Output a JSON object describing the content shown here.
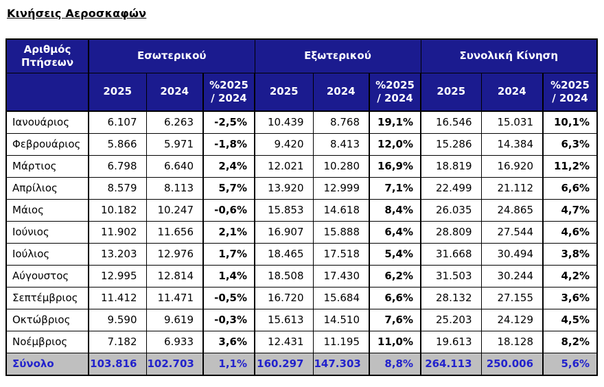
{
  "page": {
    "title": "Κινήσεις Αεροσκαφών"
  },
  "colors": {
    "header_bg": "#1b1b8f",
    "header_text": "#ffffff",
    "total_bg": "#bfbfbf",
    "total_text": "#2222cc",
    "border": "#000000"
  },
  "chart_data": {
    "type": "table",
    "title": "Κινήσεις Αεροσκαφών",
    "corner_header": "Αριθμός\nΠτήσεων",
    "column_groups": [
      "Εσωτερικού",
      "Εξωτερικού",
      "Συνολική Κίνηση"
    ],
    "sub_columns": [
      "2025",
      "2024",
      "%2025\n/ 2024"
    ],
    "rows": [
      {
        "month": "Ιανουάριος",
        "cells": [
          "6.107",
          "6.263",
          "-2,5%",
          "10.439",
          "8.768",
          "19,1%",
          "16.546",
          "15.031",
          "10,1%"
        ]
      },
      {
        "month": "Φεβρουάριος",
        "cells": [
          "5.866",
          "5.971",
          "-1,8%",
          "9.420",
          "8.413",
          "12,0%",
          "15.286",
          "14.384",
          "6,3%"
        ]
      },
      {
        "month": "Μάρτιος",
        "cells": [
          "6.798",
          "6.640",
          "2,4%",
          "12.021",
          "10.280",
          "16,9%",
          "18.819",
          "16.920",
          "11,2%"
        ]
      },
      {
        "month": "Απρίλιος",
        "cells": [
          "8.579",
          "8.113",
          "5,7%",
          "13.920",
          "12.999",
          "7,1%",
          "22.499",
          "21.112",
          "6,6%"
        ]
      },
      {
        "month": "Μάιος",
        "cells": [
          "10.182",
          "10.247",
          "-0,6%",
          "15.853",
          "14.618",
          "8,4%",
          "26.035",
          "24.865",
          "4,7%"
        ]
      },
      {
        "month": "Ιούνιος",
        "cells": [
          "11.902",
          "11.656",
          "2,1%",
          "16.907",
          "15.888",
          "6,4%",
          "28.809",
          "27.544",
          "4,6%"
        ]
      },
      {
        "month": "Ιούλιος",
        "cells": [
          "13.203",
          "12.976",
          "1,7%",
          "18.465",
          "17.518",
          "5,4%",
          "31.668",
          "30.494",
          "3,8%"
        ]
      },
      {
        "month": "Αύγουστος",
        "cells": [
          "12.995",
          "12.814",
          "1,4%",
          "18.508",
          "17.430",
          "6,2%",
          "31.503",
          "30.244",
          "4,2%"
        ]
      },
      {
        "month": "Σεπτέμβριος",
        "cells": [
          "11.412",
          "11.471",
          "-0,5%",
          "16.720",
          "15.684",
          "6,6%",
          "28.132",
          "27.155",
          "3,6%"
        ]
      },
      {
        "month": "Οκτώβριος",
        "cells": [
          "9.590",
          "9.619",
          "-0,3%",
          "15.613",
          "14.510",
          "7,6%",
          "25.203",
          "24.129",
          "4,5%"
        ]
      },
      {
        "month": "Νοέμβριος",
        "cells": [
          "7.182",
          "6.933",
          "3,6%",
          "12.431",
          "11.195",
          "11,0%",
          "19.613",
          "18.128",
          "8,2%"
        ]
      }
    ],
    "total_row": {
      "label": "Σύνολο",
      "cells": [
        "103.816",
        "102.703",
        "1,1%",
        "160.297",
        "147.303",
        "8,8%",
        "264.113",
        "250.006",
        "5,6%"
      ]
    }
  }
}
